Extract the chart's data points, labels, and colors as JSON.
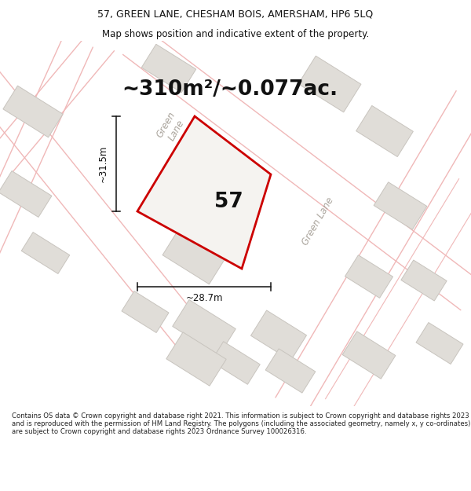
{
  "title_line1": "57, GREEN LANE, CHESHAM BOIS, AMERSHAM, HP6 5LQ",
  "title_line2": "Map shows position and indicative extent of the property.",
  "area_text": "~310m²/~0.077ac.",
  "number_label": "57",
  "dim_width": "~28.7m",
  "dim_height": "~31.5m",
  "street_label_upper": "Green\nLane",
  "street_label_lower": "Green Lane",
  "footer_text": "Contains OS data © Crown copyright and database right 2021. This information is subject to Crown copyright and database rights 2023 and is reproduced with the permission of HM Land Registry. The polygons (including the associated geometry, namely x, y co-ordinates) are subject to Crown copyright and database rights 2023 Ordnance Survey 100026316.",
  "map_bg": "#faf9f8",
  "road_color": "#f0b8b8",
  "road_lw": 1.0,
  "building_fill": "#e0ddd8",
  "building_edge": "#c8c4be",
  "building_edge_lw": 0.7,
  "plot_edge": "#cc0000",
  "plot_fill": "#f5f3f0",
  "plot_lw": 2.0,
  "street_color": "#aaa49c",
  "dim_color": "#111111",
  "text_color": "#111111",
  "footer_color": "#222222",
  "title_fontsize": 9.0,
  "subtitle_fontsize": 8.5,
  "area_fontsize": 19,
  "label_fontsize": 19,
  "street_fontsize": 8.5,
  "dim_fontsize": 8.5,
  "footer_fontsize": 6.1
}
